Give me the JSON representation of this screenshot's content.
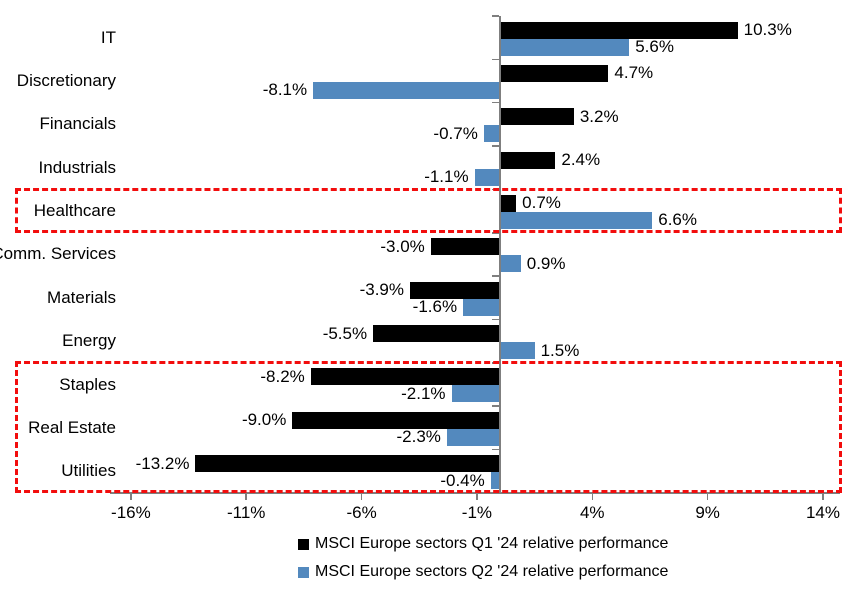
{
  "chart_data": {
    "type": "bar",
    "orientation": "horizontal-grouped",
    "title": "",
    "categories": [
      "IT",
      "Discretionary",
      "Financials",
      "Industrials",
      "Healthcare",
      "Comm. Services",
      "Materials",
      "Energy",
      "Staples",
      "Real Estate",
      "Utilities"
    ],
    "series": [
      {
        "name": "MSCI Europe sectors Q1 '24 relative performance",
        "color": "#000000",
        "values": [
          10.3,
          4.7,
          3.2,
          2.4,
          0.7,
          -3.0,
          -3.9,
          -5.5,
          -8.2,
          -9.0,
          -13.2
        ],
        "labels": [
          "10.3%",
          "4.7%",
          "3.2%",
          "2.4%",
          "0.7%",
          "-3.0%",
          "-3.9%",
          "-5.5%",
          "-8.2%",
          "-9.0%",
          "-13.2%"
        ]
      },
      {
        "name": "MSCI Europe sectors Q2 '24 relative performance",
        "color": "#5389be",
        "values": [
          5.6,
          -8.1,
          -0.7,
          -1.1,
          6.6,
          0.9,
          -1.6,
          1.5,
          -2.1,
          -2.3,
          -0.4
        ],
        "labels": [
          "5.6%",
          "-8.1%",
          "-0.7%",
          "-1.1%",
          "6.6%",
          "0.9%",
          "-1.6%",
          "1.5%",
          "-2.1%",
          "-2.3%",
          "-0.4%"
        ]
      }
    ],
    "x_ticks": {
      "values": [
        -16,
        -11,
        -6,
        -1,
        4,
        9,
        14
      ],
      "labels": [
        "-16%",
        "-11%",
        "-6%",
        "-1%",
        "4%",
        "9%",
        "14%"
      ]
    },
    "xlim": [
      -17,
      14.8
    ],
    "grid": false,
    "legend_position": "bottom-center",
    "axis_color": "#7f7f7f",
    "highlight_boxes": [
      {
        "categories": [
          "Healthcare"
        ],
        "color": "#f20d0d",
        "style": "dashed"
      },
      {
        "categories": [
          "Staples",
          "Real Estate",
          "Utilities"
        ],
        "color": "#f20d0d",
        "style": "dashed"
      }
    ]
  }
}
